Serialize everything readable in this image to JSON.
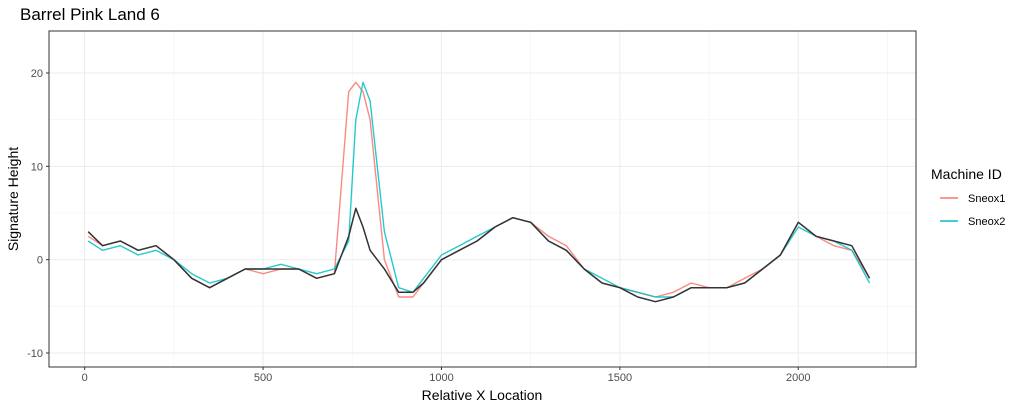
{
  "chart_data": {
    "type": "line",
    "title": "Barrel Pink Land 6",
    "xlabel": "Relative X Location",
    "ylabel": "Signature Height",
    "xlim": [
      -100,
      2330
    ],
    "ylim": [
      -11.5,
      24.5
    ],
    "x_ticks": [
      0,
      500,
      1000,
      1500,
      2000
    ],
    "y_ticks": [
      -10,
      0,
      10,
      20
    ],
    "grid": true,
    "legend": {
      "title": "Machine ID",
      "placement": "right",
      "entries": [
        {
          "name": "Sneox1",
          "color": "#F8766D"
        },
        {
          "name": "Sneox2",
          "color": "#00BFC4"
        }
      ]
    },
    "series": [
      {
        "name": "Sneox1",
        "color": "#F8766D",
        "x": [
          10,
          50,
          100,
          150,
          200,
          250,
          300,
          350,
          400,
          450,
          500,
          550,
          600,
          650,
          700,
          740,
          760,
          780,
          800,
          840,
          880,
          920,
          950,
          1000,
          1050,
          1100,
          1150,
          1200,
          1250,
          1300,
          1350,
          1400,
          1450,
          1500,
          1550,
          1600,
          1650,
          1700,
          1750,
          1800,
          1850,
          1900,
          1950,
          2000,
          2050,
          2100,
          2150,
          2200
        ],
        "y": [
          2.5,
          1.5,
          2.0,
          1.0,
          1.5,
          0.0,
          -2.0,
          -3.0,
          -2.0,
          -1.0,
          -1.5,
          -1.0,
          -1.0,
          -2.0,
          -1.5,
          18.0,
          19.0,
          18.0,
          15.0,
          0.0,
          -4.0,
          -4.0,
          -2.5,
          0.0,
          1.0,
          2.0,
          3.5,
          4.5,
          4.0,
          2.5,
          1.5,
          -1.0,
          -2.5,
          -3.0,
          -3.5,
          -4.0,
          -3.5,
          -2.5,
          -3.0,
          -3.0,
          -2.0,
          -1.0,
          0.5,
          4.0,
          2.5,
          1.5,
          1.0,
          -2.0
        ]
      },
      {
        "name": "Sneox2",
        "color": "#00BFC4",
        "x": [
          10,
          50,
          100,
          150,
          200,
          250,
          300,
          350,
          400,
          450,
          500,
          550,
          600,
          650,
          700,
          740,
          760,
          780,
          800,
          840,
          880,
          920,
          950,
          1000,
          1050,
          1100,
          1150,
          1200,
          1250,
          1300,
          1350,
          1400,
          1450,
          1500,
          1550,
          1600,
          1650,
          1700,
          1750,
          1800,
          1850,
          1900,
          1950,
          2000,
          2050,
          2100,
          2150,
          2200
        ],
        "y": [
          2.0,
          1.0,
          1.5,
          0.5,
          1.0,
          0.0,
          -1.5,
          -2.5,
          -2.0,
          -1.0,
          -1.0,
          -0.5,
          -1.0,
          -1.5,
          -1.0,
          2.0,
          15.0,
          19.0,
          17.0,
          3.0,
          -3.0,
          -3.5,
          -2.0,
          0.5,
          1.5,
          2.5,
          3.5,
          4.5,
          4.0,
          2.0,
          1.0,
          -1.0,
          -2.0,
          -3.0,
          -3.5,
          -4.0,
          -4.0,
          -3.0,
          -3.0,
          -3.0,
          -2.5,
          -1.0,
          0.5,
          3.5,
          2.5,
          2.0,
          1.0,
          -2.5
        ]
      },
      {
        "color": "#333333",
        "x": [
          10,
          50,
          100,
          150,
          200,
          250,
          300,
          350,
          400,
          450,
          500,
          550,
          600,
          650,
          700,
          740,
          760,
          780,
          800,
          840,
          880,
          920,
          950,
          1000,
          1050,
          1100,
          1150,
          1200,
          1250,
          1300,
          1350,
          1400,
          1450,
          1500,
          1550,
          1600,
          1650,
          1700,
          1750,
          1800,
          1850,
          1900,
          1950,
          2000,
          2050,
          2100,
          2150,
          2200
        ],
        "y": [
          3.0,
          1.5,
          2.0,
          1.0,
          1.5,
          0.0,
          -2.0,
          -3.0,
          -2.0,
          -1.0,
          -1.0,
          -1.0,
          -1.0,
          -2.0,
          -1.5,
          2.5,
          5.5,
          3.5,
          1.0,
          -1.0,
          -3.5,
          -3.5,
          -2.5,
          0.0,
          1.0,
          2.0,
          3.5,
          4.5,
          4.0,
          2.0,
          1.0,
          -1.0,
          -2.5,
          -3.0,
          -4.0,
          -4.5,
          -4.0,
          -3.0,
          -3.0,
          -3.0,
          -2.5,
          -1.0,
          0.5,
          4.0,
          2.5,
          2.0,
          1.5,
          -2.0
        ]
      }
    ]
  }
}
